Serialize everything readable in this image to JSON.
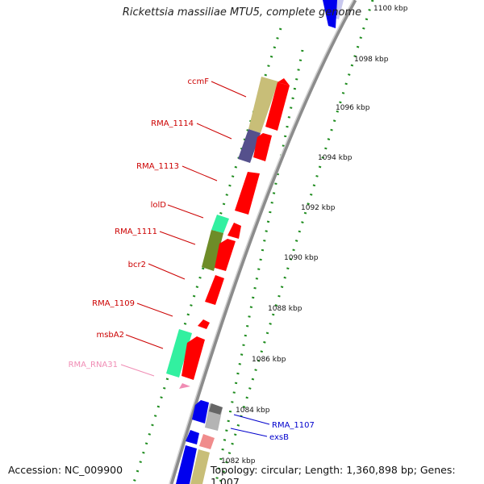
{
  "title": "Rickettsia massiliae MTU5, complete genome",
  "accession": "Accession: NC_009900",
  "info": "Topology: circular; Length: 1,360,898 bp; Genes: 1,007",
  "kbp_labels": [
    "1100 kbp",
    "1098 kbp",
    "1096 kbp",
    "1094 kbp",
    "1092 kbp",
    "1090 kbp",
    "1088 kbp",
    "1086 kbp",
    "1084 kbp",
    "1082 kbp"
  ],
  "gene_labels": [
    {
      "text": "ccmF",
      "color": "#cc0000"
    },
    {
      "text": "RMA_1114",
      "color": "#cc0000"
    },
    {
      "text": "RMA_1113",
      "color": "#cc0000"
    },
    {
      "text": "lolD",
      "color": "#cc0000"
    },
    {
      "text": "RMA_1111",
      "color": "#cc0000"
    },
    {
      "text": "bcr2",
      "color": "#cc0000"
    },
    {
      "text": "RMA_1109",
      "color": "#cc0000"
    },
    {
      "text": "msbA2",
      "color": "#cc0000"
    },
    {
      "text": "RMA_RNA31",
      "color": "#f08cb4"
    },
    {
      "text": "RMA_1107",
      "color": "#0000cc"
    },
    {
      "text": "exsB",
      "color": "#0000cc"
    }
  ],
  "colors": {
    "cds_reverse": "#ff0000",
    "cds_forward": "#0000ee",
    "backbone": "#8c8c8c",
    "ticks": "#1e8c1e",
    "cog_khaki": "#c8be78",
    "cog_slate": "#55508c",
    "cog_mint": "#32f0a0",
    "cog_olive": "#6e8c28",
    "cog_gray": "#b4b4b4",
    "cog_pink": "#f08c8c",
    "rna": "#f08cb4"
  }
}
